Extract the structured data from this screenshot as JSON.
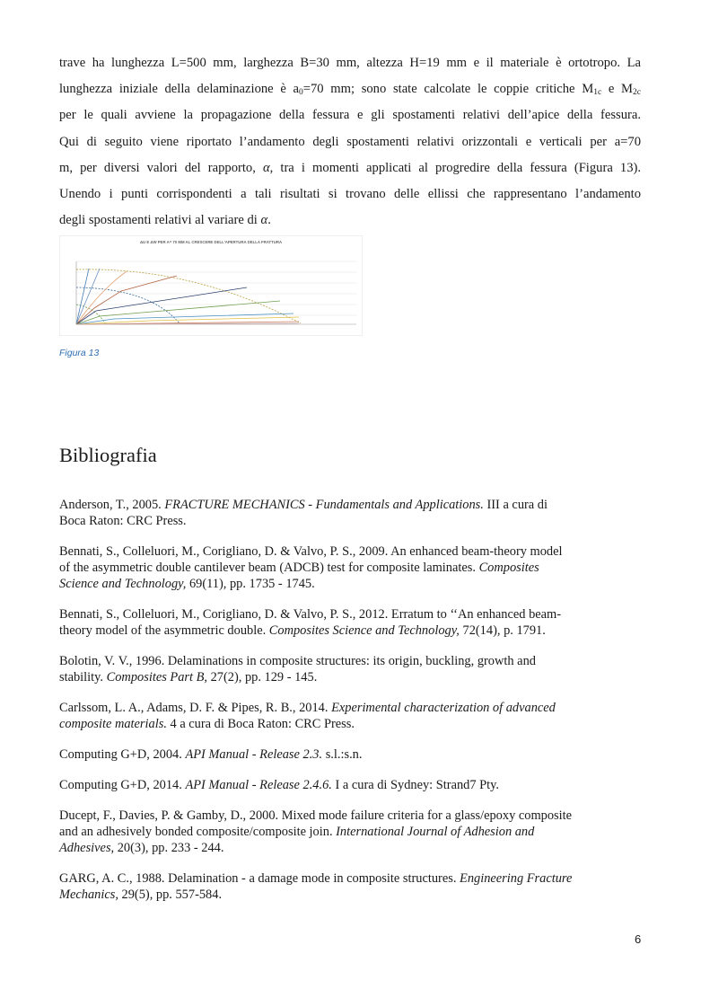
{
  "paragraph_lines": [
    [
      {
        "t": "trave ha lunghezza L=500 mm, larghezza B=30 mm, altezza H=19 mm e il materiale è ortotropo. La"
      }
    ],
    [
      {
        "t": "lunghezza iniziale della delaminazione è a"
      },
      {
        "t": "0",
        "sub": true
      },
      {
        "t": "=70 mm; sono state calcolate le coppie critiche M"
      },
      {
        "t": "1c",
        "sub": true
      },
      {
        "t": " e M"
      },
      {
        "t": "2c",
        "sub": true
      }
    ],
    [
      {
        "t": "per le quali avviene la propagazione della fessura e gli spostamenti relativi dell’apice della fessura."
      }
    ],
    [
      {
        "t": "Qui di seguito viene riportato l’andamento degli spostamenti relativi orizzontali e verticali per a=70"
      }
    ],
    [
      {
        "t": "m, per diversi valori del rapporto, "
      },
      {
        "t": "α",
        "i": true
      },
      {
        "t": ", tra i momenti applicati al progredire della fessura (Figura 13)."
      }
    ],
    [
      {
        "t": "Unendo i punti corrispondenti a tali risultati si trovano delle ellissi che rappresentano l’andamento"
      }
    ],
    [
      {
        "t": "degli spostamenti relativi al variare di "
      },
      {
        "t": "α",
        "i": true
      },
      {
        "t": "."
      }
    ]
  ],
  "figure": {
    "title": "ΔU E ΔW PER A= 70 MM AL CRESCERE DELL'APERTURA DELLA FRATTURA",
    "caption": "Figura 13"
  },
  "bibliography": {
    "heading": "Bibliografia",
    "references": [
      [
        [
          {
            "t": "Anderson, T., 2005. "
          },
          {
            "t": "FRACTURE MECHANICS - Fundamentals and Applications.",
            "i": true
          },
          {
            "t": " III a cura di"
          }
        ],
        [
          {
            "t": "Boca Raton: CRC Press."
          }
        ]
      ],
      [
        [
          {
            "t": "Bennati, S., Colleluori, M., Corigliano, D. & Valvo, P. S., 2009. An enhanced beam-theory model"
          }
        ],
        [
          {
            "t": "of the asymmetric double cantilever beam (ADCB) test for composite laminates. "
          },
          {
            "t": "Composites",
            "i": true
          }
        ],
        [
          {
            "t": "Science and Technology,",
            "i": true
          },
          {
            "t": " 69(11), pp. 1735 - 1745."
          }
        ]
      ],
      [
        [
          {
            "t": "Bennati, S., Colleluori, M., Corigliano, D. & Valvo, P. S., 2012. Erratum to ‘‘An enhanced beam-"
          }
        ],
        [
          {
            "t": "theory model of the asymmetric double. "
          },
          {
            "t": "Composites Science and Technology,",
            "i": true
          },
          {
            "t": " 72(14), p. 1791."
          }
        ]
      ],
      [
        [
          {
            "t": "Bolotin, V. V., 1996. Delaminations in composite structures: its origin, buckling, growth and"
          }
        ],
        [
          {
            "t": "stability. "
          },
          {
            "t": "Composites Part B,",
            "i": true
          },
          {
            "t": " 27(2), pp. 129 - 145."
          }
        ]
      ],
      [
        [
          {
            "t": "Carlssom, L. A., Adams, D. F. & Pipes, R. B., 2014. "
          },
          {
            "t": "Experimental characterization of advanced",
            "i": true
          }
        ],
        [
          {
            "t": "composite materials.",
            "i": true
          },
          {
            "t": " 4 a cura di Boca Raton: CRC Press."
          }
        ]
      ],
      [
        [
          {
            "t": "Computing G+D, 2004. "
          },
          {
            "t": "API Manual - Release 2.3.",
            "i": true
          },
          {
            "t": " s.l.:s.n."
          }
        ]
      ],
      [
        [
          {
            "t": "Computing G+D, 2014. "
          },
          {
            "t": "API Manual - Release 2.4.6.",
            "i": true
          },
          {
            "t": " I a cura di Sydney: Strand7 Pty."
          }
        ]
      ],
      [
        [
          {
            "t": "Ducept, F., Davies, P. & Gamby, D., 2000. Mixed mode failure criteria for a glass/epoxy composite"
          }
        ],
        [
          {
            "t": "and an adhesively bonded composite/composite join. "
          },
          {
            "t": "International Journal of Adhesion and",
            "i": true
          }
        ],
        [
          {
            "t": "Adhesives,",
            "i": true
          },
          {
            "t": " 20(3), pp. 233 - 244."
          }
        ]
      ],
      [
        [
          {
            "t": "GARG, A. C., 1988. Delamination - a damage mode in composite structures. "
          },
          {
            "t": "Engineering Fracture",
            "i": true
          }
        ],
        [
          {
            "t": "Mechanics,",
            "i": true
          },
          {
            "t": " 29(5), pp. 557-584."
          }
        ]
      ]
    ]
  },
  "page_number": "6",
  "colors": {
    "caption": "#2e6fb5",
    "text": "#1a1a1a"
  }
}
